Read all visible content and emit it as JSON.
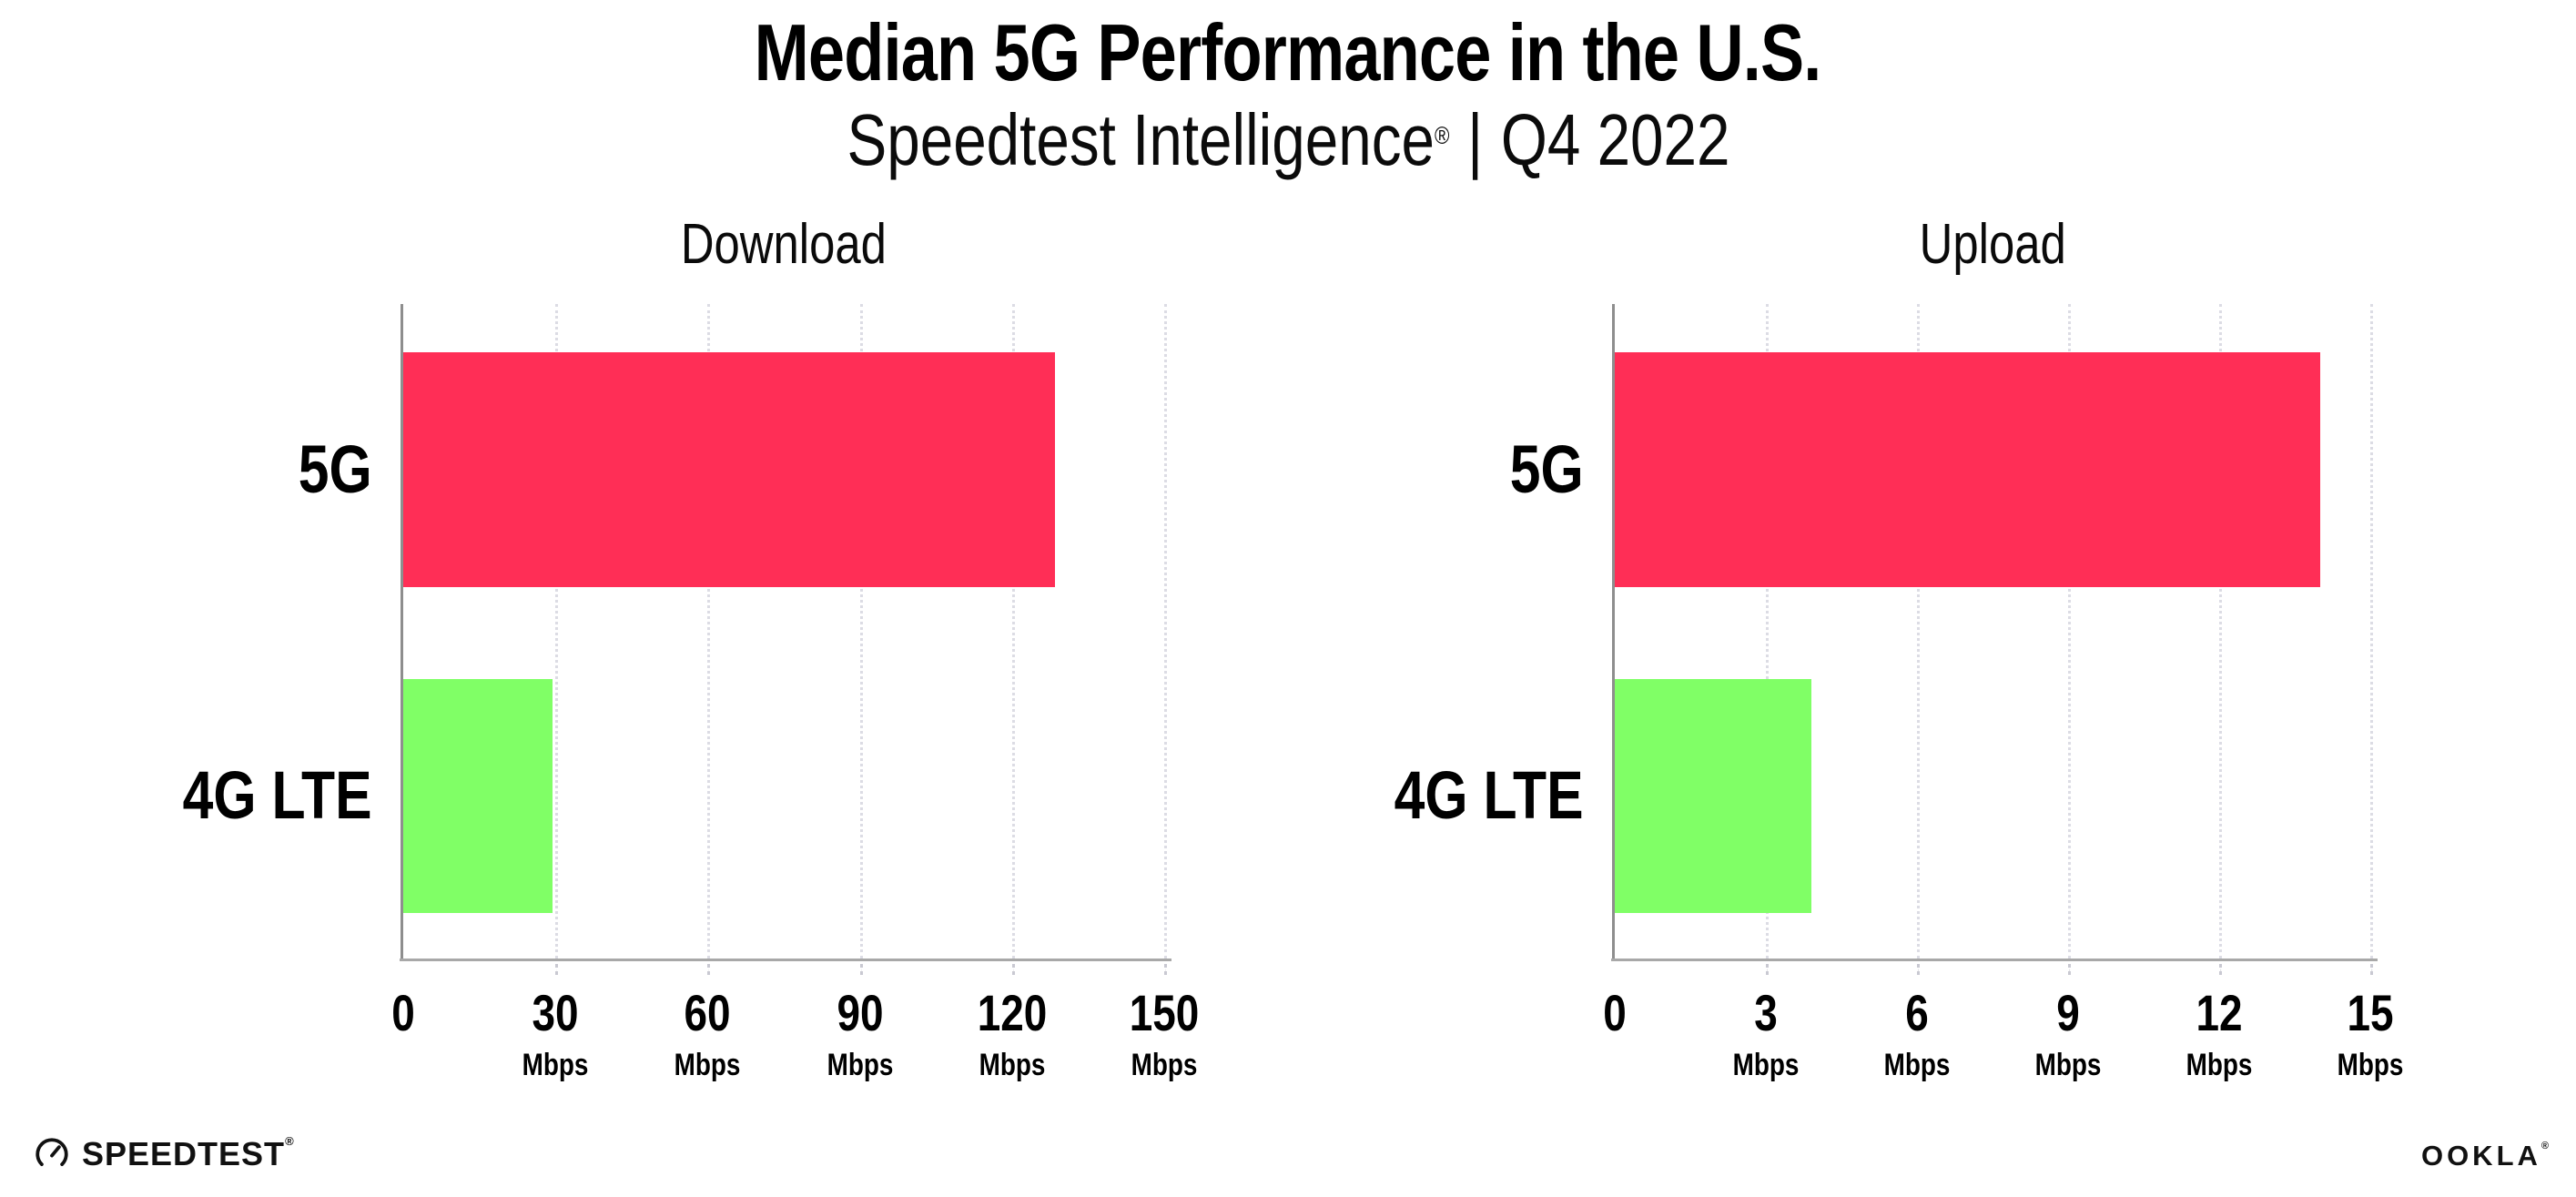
{
  "header": {
    "title": "Median 5G Performance in the U.S.",
    "subtitle_brand": "Speedtest Intelligence",
    "subtitle_reg": "®",
    "subtitle_sep": "|",
    "subtitle_period": "Q4 2022"
  },
  "footer": {
    "speedtest_label": "SPEEDTEST",
    "speedtest_mark": "®",
    "ookla_label": "OOKLA",
    "ookla_mark": "®"
  },
  "colors": {
    "bar_5g": "#ff2e56",
    "bar_4g": "#80ff66",
    "axis_line": "#a8a8a8",
    "axis_spine": "#8e8e8e",
    "gridline": "#dcdce4",
    "text": "#000000"
  },
  "chart_data": [
    {
      "type": "bar",
      "orientation": "horizontal",
      "title": "Download",
      "categories": [
        "5G",
        "4G LTE"
      ],
      "values": [
        128.5,
        29.5
      ],
      "unit": "Mbps",
      "xlim": [
        0,
        150
      ],
      "xticks": [
        0,
        30,
        60,
        90,
        120,
        150
      ],
      "grid": "dotted-vertical",
      "legend": "none"
    },
    {
      "type": "bar",
      "orientation": "horizontal",
      "title": "Upload",
      "categories": [
        "5G",
        "4G LTE"
      ],
      "values": [
        14,
        3.9
      ],
      "unit": "Mbps",
      "xlim": [
        0,
        15
      ],
      "xticks": [
        0,
        3,
        6,
        9,
        12,
        15
      ],
      "grid": "dotted-vertical",
      "legend": "none"
    }
  ]
}
